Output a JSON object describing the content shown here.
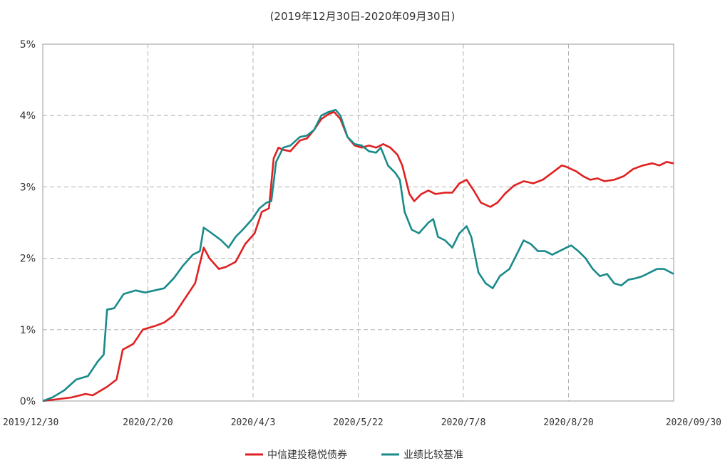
{
  "chart_data": {
    "type": "line",
    "title": "(2019年12月30日-2020年09月30日)",
    "xlabel": "",
    "ylabel": "",
    "x_tick_labels": [
      "2019/12/30",
      "2020/2/20",
      "2020/4/3",
      "2020/5/22",
      "2020/7/8",
      "2020/8/20",
      "2020/09/30"
    ],
    "y_tick_labels": [
      "0%",
      "1%",
      "2%",
      "3%",
      "4%",
      "5%"
    ],
    "ylim": [
      0,
      5
    ],
    "y_unit": "%",
    "grid": true,
    "legend_position": "bottom",
    "series": [
      {
        "name": "中信建投稳悦债券",
        "color": "#e02020",
        "values": [
          [
            0.0,
            0.0
          ],
          [
            0.6,
            0.05
          ],
          [
            0.9,
            0.1
          ],
          [
            1.05,
            0.08
          ],
          [
            1.35,
            0.2
          ],
          [
            1.55,
            0.3
          ],
          [
            1.68,
            0.72
          ],
          [
            1.9,
            0.8
          ],
          [
            2.1,
            1.0
          ],
          [
            2.35,
            1.05
          ],
          [
            2.55,
            1.1
          ],
          [
            2.75,
            1.2
          ],
          [
            2.95,
            1.4
          ],
          [
            3.2,
            1.65
          ],
          [
            3.38,
            2.15
          ],
          [
            3.5,
            2.0
          ],
          [
            3.7,
            1.85
          ],
          [
            3.85,
            1.88
          ],
          [
            4.05,
            1.95
          ],
          [
            4.25,
            2.2
          ],
          [
            4.45,
            2.35
          ],
          [
            4.6,
            2.65
          ],
          [
            4.75,
            2.7
          ],
          [
            4.85,
            3.4
          ],
          [
            4.95,
            3.55
          ],
          [
            5.05,
            3.52
          ],
          [
            5.2,
            3.5
          ],
          [
            5.4,
            3.65
          ],
          [
            5.55,
            3.68
          ],
          [
            5.7,
            3.8
          ],
          [
            5.85,
            3.95
          ],
          [
            6.0,
            4.02
          ],
          [
            6.12,
            4.05
          ],
          [
            6.25,
            3.95
          ],
          [
            6.4,
            3.7
          ],
          [
            6.55,
            3.58
          ],
          [
            6.7,
            3.55
          ],
          [
            6.85,
            3.58
          ],
          [
            7.0,
            3.55
          ],
          [
            7.15,
            3.6
          ],
          [
            7.3,
            3.55
          ],
          [
            7.45,
            3.45
          ],
          [
            7.55,
            3.3
          ],
          [
            7.7,
            2.9
          ],
          [
            7.8,
            2.8
          ],
          [
            7.95,
            2.9
          ],
          [
            8.1,
            2.95
          ],
          [
            8.25,
            2.9
          ],
          [
            8.45,
            2.92
          ],
          [
            8.6,
            2.92
          ],
          [
            8.75,
            3.05
          ],
          [
            8.9,
            3.1
          ],
          [
            9.05,
            2.95
          ],
          [
            9.2,
            2.78
          ],
          [
            9.4,
            2.72
          ],
          [
            9.55,
            2.78
          ],
          [
            9.7,
            2.9
          ],
          [
            9.9,
            3.02
          ],
          [
            10.1,
            3.08
          ],
          [
            10.3,
            3.05
          ],
          [
            10.5,
            3.1
          ],
          [
            10.7,
            3.2
          ],
          [
            10.9,
            3.3
          ],
          [
            11.0,
            3.28
          ],
          [
            11.2,
            3.22
          ],
          [
            11.35,
            3.15
          ],
          [
            11.5,
            3.1
          ],
          [
            11.65,
            3.12
          ],
          [
            11.8,
            3.08
          ],
          [
            12.0,
            3.1
          ],
          [
            12.2,
            3.15
          ],
          [
            12.4,
            3.25
          ],
          [
            12.6,
            3.3
          ],
          [
            12.8,
            3.33
          ],
          [
            12.95,
            3.3
          ],
          [
            13.1,
            3.35
          ],
          [
            13.25,
            3.33
          ]
        ]
      },
      {
        "name": "业绩比较基准",
        "color": "#1a8a8a",
        "values": [
          [
            0.0,
            0.0
          ],
          [
            0.2,
            0.05
          ],
          [
            0.45,
            0.15
          ],
          [
            0.7,
            0.3
          ],
          [
            0.95,
            0.35
          ],
          [
            1.15,
            0.55
          ],
          [
            1.28,
            0.65
          ],
          [
            1.35,
            1.28
          ],
          [
            1.5,
            1.3
          ],
          [
            1.7,
            1.5
          ],
          [
            1.95,
            1.55
          ],
          [
            2.15,
            1.52
          ],
          [
            2.35,
            1.55
          ],
          [
            2.55,
            1.58
          ],
          [
            2.75,
            1.72
          ],
          [
            2.95,
            1.9
          ],
          [
            3.15,
            2.05
          ],
          [
            3.3,
            2.1
          ],
          [
            3.38,
            2.43
          ],
          [
            3.55,
            2.35
          ],
          [
            3.75,
            2.25
          ],
          [
            3.9,
            2.15
          ],
          [
            4.05,
            2.3
          ],
          [
            4.2,
            2.4
          ],
          [
            4.4,
            2.55
          ],
          [
            4.55,
            2.7
          ],
          [
            4.7,
            2.78
          ],
          [
            4.8,
            2.8
          ],
          [
            4.9,
            3.35
          ],
          [
            5.05,
            3.55
          ],
          [
            5.2,
            3.58
          ],
          [
            5.4,
            3.7
          ],
          [
            5.55,
            3.72
          ],
          [
            5.7,
            3.8
          ],
          [
            5.85,
            4.0
          ],
          [
            6.0,
            4.05
          ],
          [
            6.15,
            4.08
          ],
          [
            6.25,
            4.0
          ],
          [
            6.4,
            3.7
          ],
          [
            6.55,
            3.6
          ],
          [
            6.7,
            3.58
          ],
          [
            6.85,
            3.5
          ],
          [
            7.0,
            3.48
          ],
          [
            7.1,
            3.55
          ],
          [
            7.25,
            3.3
          ],
          [
            7.4,
            3.2
          ],
          [
            7.5,
            3.1
          ],
          [
            7.6,
            2.65
          ],
          [
            7.75,
            2.4
          ],
          [
            7.9,
            2.35
          ],
          [
            8.1,
            2.5
          ],
          [
            8.2,
            2.55
          ],
          [
            8.3,
            2.3
          ],
          [
            8.45,
            2.25
          ],
          [
            8.6,
            2.15
          ],
          [
            8.75,
            2.35
          ],
          [
            8.9,
            2.45
          ],
          [
            9.0,
            2.3
          ],
          [
            9.15,
            1.8
          ],
          [
            9.3,
            1.65
          ],
          [
            9.45,
            1.58
          ],
          [
            9.6,
            1.75
          ],
          [
            9.8,
            1.85
          ],
          [
            9.95,
            2.05
          ],
          [
            10.1,
            2.25
          ],
          [
            10.25,
            2.2
          ],
          [
            10.4,
            2.1
          ],
          [
            10.55,
            2.1
          ],
          [
            10.7,
            2.05
          ],
          [
            10.85,
            2.1
          ],
          [
            11.0,
            2.15
          ],
          [
            11.1,
            2.18
          ],
          [
            11.25,
            2.1
          ],
          [
            11.4,
            2.0
          ],
          [
            11.55,
            1.85
          ],
          [
            11.7,
            1.75
          ],
          [
            11.85,
            1.78
          ],
          [
            12.0,
            1.65
          ],
          [
            12.15,
            1.62
          ],
          [
            12.3,
            1.7
          ],
          [
            12.45,
            1.72
          ],
          [
            12.6,
            1.75
          ],
          [
            12.75,
            1.8
          ],
          [
            12.9,
            1.85
          ],
          [
            13.05,
            1.85
          ],
          [
            13.25,
            1.78
          ]
        ]
      }
    ]
  }
}
